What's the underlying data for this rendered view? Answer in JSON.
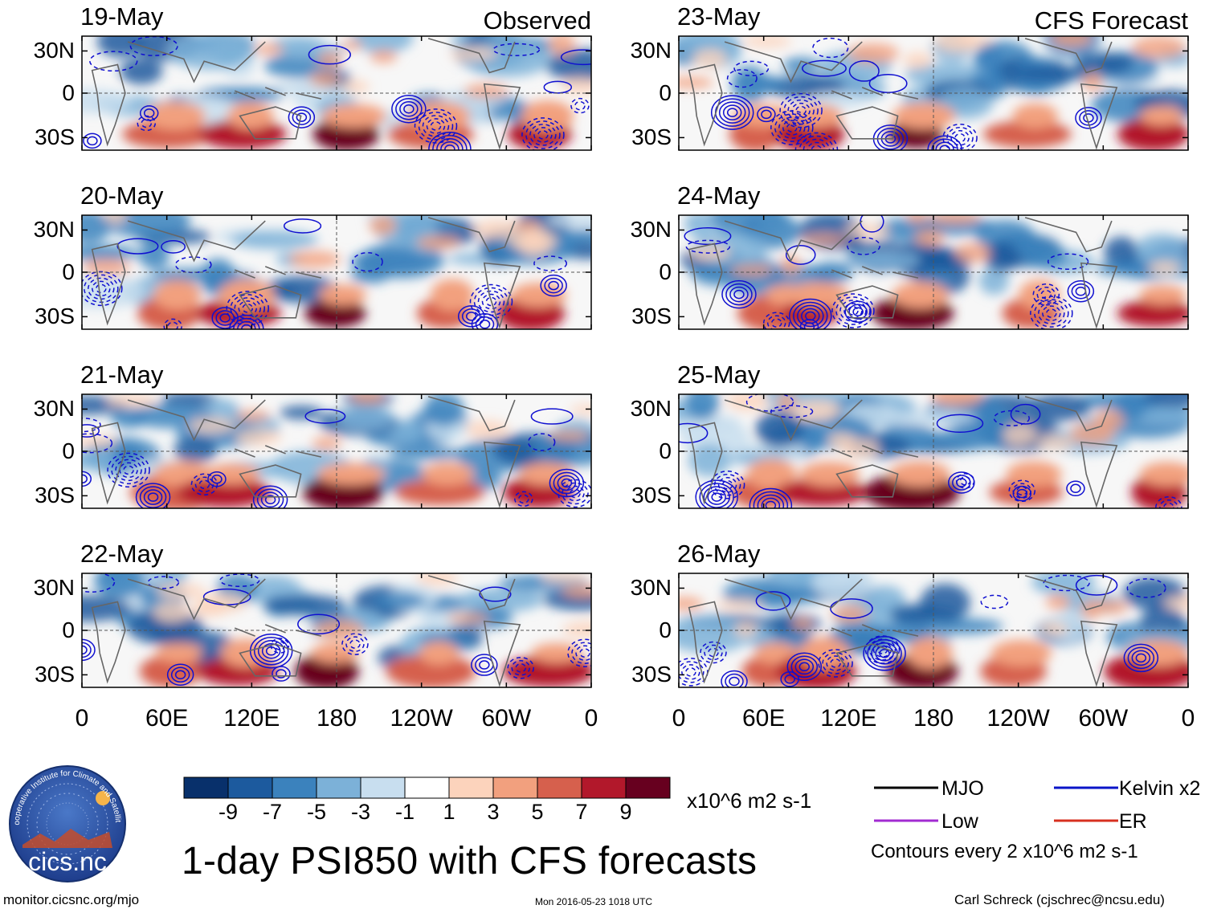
{
  "chart_data": {
    "type": "heatmap",
    "title": "1-day PSI850 with CFS forecasts",
    "variable": "PSI850",
    "units": "x10^6 m2 s-1",
    "contour_note": "Contours every 2 x10^6 m2 s-1",
    "columns": [
      {
        "heading": "Observed",
        "dates": [
          "19-May",
          "20-May",
          "21-May",
          "22-May"
        ]
      },
      {
        "heading": "CFS Forecast",
        "dates": [
          "23-May",
          "24-May",
          "25-May",
          "26-May"
        ]
      }
    ],
    "latitude_ticks": [
      "30N",
      "0",
      "30S"
    ],
    "longitude_ticks": [
      "0",
      "60E",
      "120E",
      "180",
      "120W",
      "60W",
      "0"
    ],
    "colorbar": {
      "tick_labels": [
        "-9",
        "-7",
        "-5",
        "-3",
        "-1",
        "1",
        "3",
        "5",
        "7",
        "9"
      ],
      "colors": [
        "#08306b",
        "#1c5a9e",
        "#3b82bd",
        "#7cb1d8",
        "#c8deef",
        "#ffffff",
        "#fcd3bc",
        "#f2a07e",
        "#d6604d",
        "#b2182b",
        "#67001f"
      ]
    },
    "legend": [
      {
        "label": "MJO",
        "color": "#000000"
      },
      {
        "label": "Kelvin x2",
        "color": "#0a14c8"
      },
      {
        "label": "Low",
        "color": "#a12bd1"
      },
      {
        "label": "ER",
        "color": "#d7301f"
      }
    ]
  },
  "footer": {
    "url": "monitor.cicsnc.org/mjo",
    "timestamp": "Mon 2016-05-23 1018 UTC",
    "author": "Carl Schreck (cjschrec@ncsu.edu)"
  },
  "logo": {
    "name": "cics.nc",
    "ring_text": "Cooperative Institute for Climate and Satellites"
  }
}
